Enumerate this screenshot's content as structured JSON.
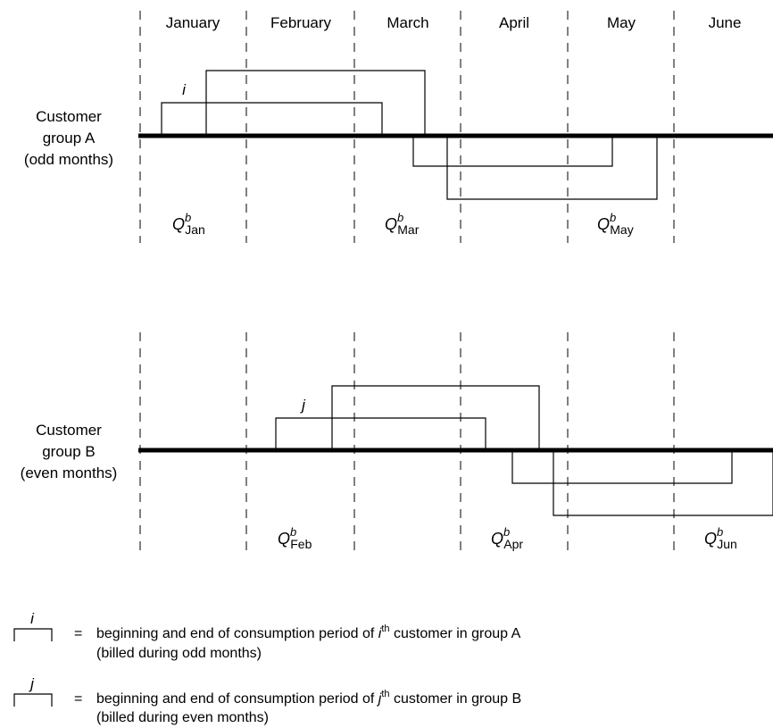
{
  "months": [
    "January",
    "February",
    "March",
    "April",
    "May",
    "June"
  ],
  "group_a": {
    "label_lines": [
      "Customer",
      "group A",
      "(odd months)"
    ],
    "customer_tag": "i",
    "quantities": [
      {
        "base": "Q",
        "sup": "b",
        "sub": "Jan"
      },
      {
        "base": "Q",
        "sup": "b",
        "sub": "Mar"
      },
      {
        "base": "Q",
        "sup": "b",
        "sub": "May"
      }
    ]
  },
  "group_b": {
    "label_lines": [
      "Customer",
      "group B",
      "(even months)"
    ],
    "customer_tag": "j",
    "quantities": [
      {
        "base": "Q",
        "sup": "b",
        "sub": "Feb"
      },
      {
        "base": "Q",
        "sup": "b",
        "sub": "Apr"
      },
      {
        "base": "Q",
        "sup": "b",
        "sub": "Jun"
      }
    ]
  },
  "legend": [
    {
      "symbol": "i",
      "equals": "=",
      "line1_prefix": "beginning and end of consumption period of ",
      "line1_var": "i",
      "line1_sup": "th",
      "line1_suffix": " customer in group A",
      "line2": "(billed during odd months)"
    },
    {
      "symbol": "j",
      "equals": "=",
      "line1_prefix": "beginning and end of consumption period of ",
      "line1_var": "j",
      "line1_sup": "th",
      "line1_suffix": " customer in group B",
      "line2": "(billed during even months)"
    }
  ]
}
